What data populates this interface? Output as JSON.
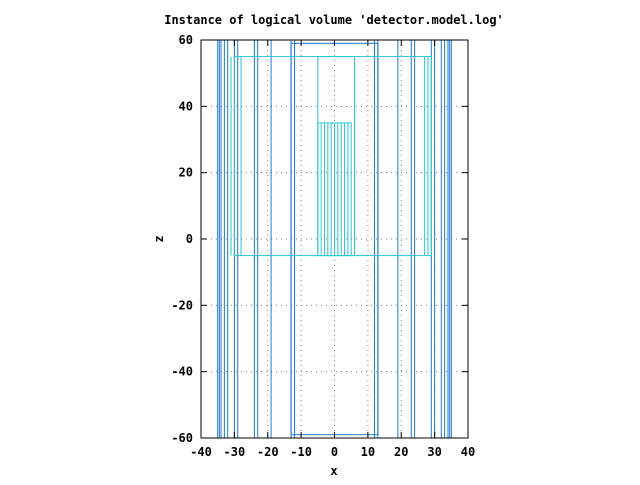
{
  "chart_data": {
    "type": "line",
    "title": "Instance of logical volume 'detector.model.log'",
    "xlabel": "x",
    "ylabel": "z",
    "xlim": [
      -40,
      40
    ],
    "ylim": [
      -60,
      60
    ],
    "xticks": [
      -40,
      -30,
      -20,
      -10,
      0,
      10,
      20,
      30,
      40
    ],
    "yticks": [
      -60,
      -40,
      -20,
      0,
      20,
      40,
      60
    ],
    "xtick_labels": [
      "-40",
      "-30",
      "-20",
      "-10",
      "0",
      "10",
      "20",
      "30",
      "40"
    ],
    "ytick_labels": [
      "-60",
      "-40",
      "-20",
      "0",
      "20",
      "40",
      "60"
    ],
    "grid": true,
    "legend": "none",
    "colors": {
      "outer": "#1e78d2",
      "inner": "#28c8d2",
      "grid": "#808080",
      "axes": "#000000"
    },
    "series": [
      {
        "color": "#1e78d2",
        "shapes": [
          {
            "kind": "vlines",
            "x": [
              -35,
              -34.5,
              -34,
              -33,
              -32,
              -30,
              -29,
              -24,
              -23,
              -19,
              -13,
              -12,
              12,
              13,
              19,
              23,
              24,
              29,
              30,
              32,
              33,
              34,
              34.5,
              35
            ],
            "z": [
              -60,
              60
            ]
          },
          {
            "kind": "rect",
            "x": [
              -13,
              13
            ],
            "z": [
              -59,
              59
            ]
          }
        ]
      },
      {
        "color": "#28c8d2",
        "shapes": [
          {
            "kind": "rect",
            "x": [
              -30,
              29
            ],
            "z": [
              -5,
              55
            ]
          },
          {
            "kind": "vlines",
            "x": [
              -31,
              -28,
              6,
              27,
              28
            ],
            "z": [
              -5,
              55
            ]
          },
          {
            "kind": "rect",
            "x": [
              -5,
              6
            ],
            "z": [
              -5,
              55
            ]
          },
          {
            "kind": "rect",
            "x": [
              -5,
              5
            ],
            "z": [
              -5,
              35
            ]
          },
          {
            "kind": "vlines",
            "x": [
              -4,
              -3,
              -2,
              -1,
              0,
              1,
              2,
              3,
              4
            ],
            "z": [
              -5,
              35
            ]
          }
        ]
      }
    ]
  }
}
